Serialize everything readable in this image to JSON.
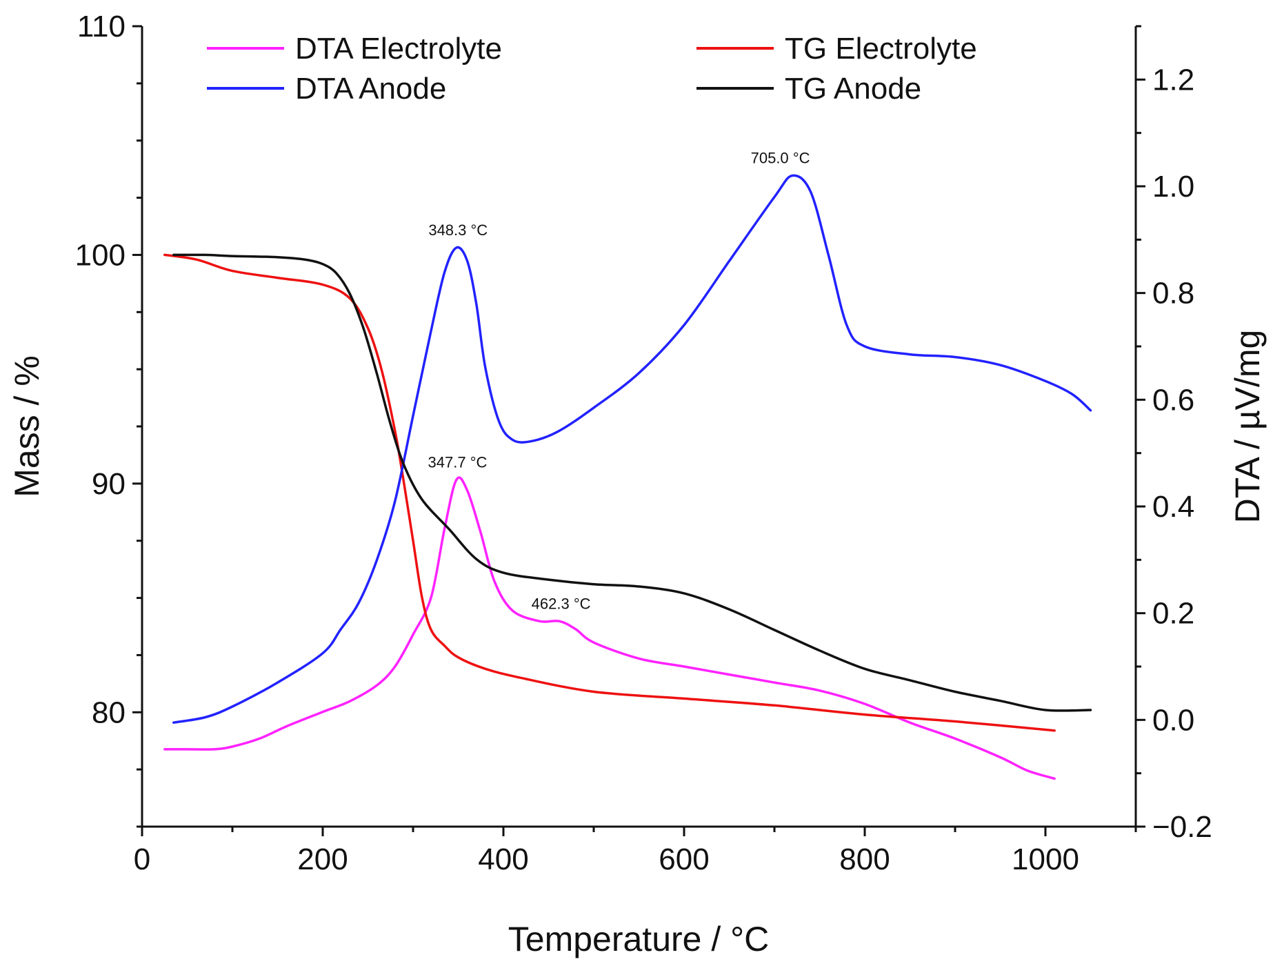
{
  "chart_data": {
    "type": "line",
    "xlabel": "Temperature / °C",
    "ylabel_left": "Mass / %",
    "ylabel_right": "DTA / µV/mg",
    "xlim": [
      0,
      1100
    ],
    "ylim_left": [
      75,
      110
    ],
    "ylim_right": [
      -0.2,
      1.3
    ],
    "xticks": [
      0,
      200,
      400,
      600,
      800,
      1000
    ],
    "yticks_left": [
      80,
      90,
      100,
      110
    ],
    "yticks_right": [
      -0.2,
      0.0,
      0.2,
      0.4,
      0.6,
      0.8,
      1.0,
      1.2
    ],
    "ytick_labels_right": [
      "−0.2",
      "0.0",
      "0.2",
      "0.4",
      "0.6",
      "0.8",
      "1.0",
      "1.2"
    ],
    "legend": [
      "DTA Electrolyte",
      "TG Electrolyte",
      "DTA Anode",
      "TG Anode"
    ],
    "series": [
      {
        "name": "DTA Electrolyte",
        "axis": "right",
        "color": "#ff22ff",
        "x": [
          25,
          50,
          80,
          100,
          130,
          160,
          200,
          230,
          260,
          280,
          300,
          320,
          335,
          348,
          360,
          375,
          390,
          410,
          440,
          462,
          480,
          500,
          550,
          600,
          650,
          700,
          750,
          800,
          850,
          900,
          950,
          980,
          1010
        ],
        "y": [
          -0.055,
          -0.055,
          -0.055,
          -0.05,
          -0.035,
          -0.012,
          0.015,
          0.035,
          0.065,
          0.1,
          0.16,
          0.23,
          0.36,
          0.45,
          0.43,
          0.35,
          0.26,
          0.205,
          0.185,
          0.185,
          0.17,
          0.145,
          0.115,
          0.1,
          0.085,
          0.07,
          0.055,
          0.03,
          -0.005,
          -0.035,
          -0.07,
          -0.095,
          -0.11
        ]
      },
      {
        "name": "TG Electrolyte",
        "axis": "left",
        "color": "#ee1111",
        "x": [
          25,
          60,
          100,
          150,
          200,
          230,
          250,
          265,
          280,
          290,
          300,
          310,
          320,
          335,
          350,
          380,
          420,
          500,
          600,
          700,
          800,
          900,
          1010
        ],
        "y": [
          100,
          99.8,
          99.3,
          99.0,
          98.7,
          98.1,
          96.8,
          95.0,
          92.3,
          90.0,
          87.5,
          85.0,
          83.6,
          82.9,
          82.4,
          81.9,
          81.5,
          80.9,
          80.6,
          80.3,
          79.9,
          79.6,
          79.2
        ]
      },
      {
        "name": "DTA Anode",
        "axis": "right",
        "color": "#2222ff",
        "x": [
          35,
          70,
          100,
          150,
          200,
          220,
          240,
          260,
          280,
          300,
          320,
          335,
          348,
          360,
          370,
          380,
          395,
          410,
          430,
          460,
          500,
          550,
          600,
          650,
          700,
          720,
          740,
          760,
          780,
          800,
          850,
          900,
          950,
          1000,
          1030,
          1050
        ],
        "y": [
          -0.005,
          0.005,
          0.025,
          0.07,
          0.125,
          0.17,
          0.22,
          0.3,
          0.41,
          0.57,
          0.73,
          0.84,
          0.885,
          0.86,
          0.78,
          0.66,
          0.56,
          0.525,
          0.522,
          0.54,
          0.585,
          0.65,
          0.74,
          0.86,
          0.98,
          1.02,
          0.99,
          0.87,
          0.74,
          0.7,
          0.685,
          0.68,
          0.665,
          0.635,
          0.61,
          0.58
        ]
      },
      {
        "name": "TG Anode",
        "axis": "left",
        "color": "#111111",
        "x": [
          35,
          70,
          100,
          150,
          180,
          200,
          215,
          230,
          245,
          260,
          275,
          290,
          310,
          340,
          370,
          400,
          450,
          500,
          550,
          600,
          650,
          700,
          750,
          800,
          850,
          900,
          950,
          1000,
          1050
        ],
        "y": [
          100,
          100,
          99.95,
          99.9,
          99.8,
          99.6,
          99.2,
          98.3,
          96.8,
          94.8,
          92.6,
          90.8,
          89.3,
          88.0,
          86.7,
          86.1,
          85.8,
          85.6,
          85.5,
          85.2,
          84.5,
          83.6,
          82.7,
          81.9,
          81.4,
          80.9,
          80.5,
          80.1,
          80.1
        ]
      }
    ],
    "annotations": [
      {
        "text": "348.3 °C",
        "x": 348.3,
        "y": 0.885,
        "axis": "right"
      },
      {
        "text": "347.7 °C",
        "x": 347.7,
        "y": 0.45,
        "axis": "right"
      },
      {
        "text": "462.3 °C",
        "x": 462.3,
        "y": 0.185,
        "axis": "right"
      },
      {
        "text": "705.0 °C",
        "x": 705.0,
        "y": 1.02,
        "axis": "right"
      }
    ]
  }
}
